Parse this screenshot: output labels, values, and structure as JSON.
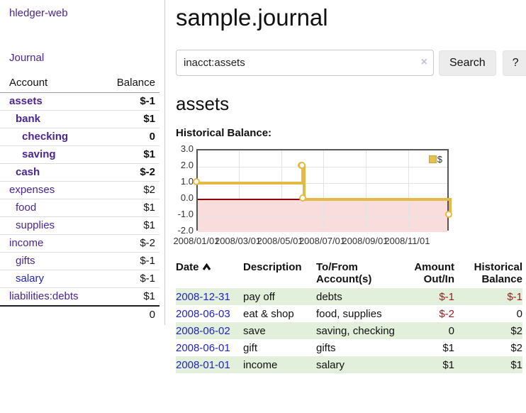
{
  "app": {
    "brand": "hledger-web",
    "nav_journal": "Journal"
  },
  "sidebar": {
    "accounts_header": {
      "account": "Account",
      "balance": "Balance"
    },
    "accounts": [
      {
        "name": "assets",
        "depth": 1,
        "balance": "$-1",
        "bold": true,
        "neg": "strong"
      },
      {
        "name": "bank",
        "depth": 2,
        "balance": "$1",
        "bold": true,
        "neg": "none"
      },
      {
        "name": "checking",
        "depth": 3,
        "balance": "0",
        "bold": true,
        "neg": "none"
      },
      {
        "name": "saving",
        "depth": 3,
        "balance": "$1",
        "bold": true,
        "neg": "none"
      },
      {
        "name": "cash",
        "depth": 2,
        "balance": "$-2",
        "bold": true,
        "neg": "strong"
      },
      {
        "name": "expenses",
        "depth": 1,
        "balance": "$2",
        "bold": false,
        "neg": "none"
      },
      {
        "name": "food",
        "depth": 2,
        "balance": "$1",
        "bold": false,
        "neg": "none"
      },
      {
        "name": "supplies",
        "depth": 2,
        "balance": "$1",
        "bold": false,
        "neg": "none"
      },
      {
        "name": "income",
        "depth": 1,
        "balance": "$-2",
        "bold": false,
        "neg": "muted"
      },
      {
        "name": "gifts",
        "depth": 2,
        "balance": "$-1",
        "bold": false,
        "neg": "muted"
      },
      {
        "name": "salary",
        "depth": 2,
        "balance": "$-1",
        "bold": false,
        "neg": "muted",
        "link_color": "blue"
      },
      {
        "name": "liabilities:debts",
        "depth": 1,
        "balance": "$1",
        "bold": false,
        "neg": "none"
      }
    ],
    "total": "0"
  },
  "header": {
    "title": "sample.journal"
  },
  "search": {
    "value": "inacct:assets",
    "clear_icon": "×",
    "button_label": "Search",
    "help_label": "?"
  },
  "account_page": {
    "heading": "assets",
    "chart_label": "Historical Balance:"
  },
  "chart_data": {
    "type": "line",
    "style": "step",
    "title": "Historical Balance",
    "series": [
      {
        "name": "$",
        "color": "#e4ba45",
        "points": [
          {
            "date": "2008-01-01",
            "value": 1
          },
          {
            "date": "2008-06-01",
            "value": 2
          },
          {
            "date": "2008-06-02",
            "value": 2
          },
          {
            "date": "2008-06-03",
            "value": 0
          },
          {
            "date": "2008-12-31",
            "value": -1
          }
        ]
      }
    ],
    "x_range": {
      "start": "2008-01-01",
      "end": "2008-12-31"
    },
    "ylim": [
      -2,
      3
    ],
    "yticks": [
      {
        "label": "3.0",
        "value": 3
      },
      {
        "label": "2.0",
        "value": 2
      },
      {
        "label": "1.0",
        "value": 1
      },
      {
        "label": "0.0",
        "value": 0
      },
      {
        "label": "-1.0",
        "value": -1
      },
      {
        "label": "-2.0",
        "value": -2
      }
    ],
    "xticks": [
      {
        "label": "2008/01/01",
        "date": "2008-01-01"
      },
      {
        "label": "2008/03/01",
        "date": "2008-03-01"
      },
      {
        "label": "2008/05/01",
        "date": "2008-05-01"
      },
      {
        "label": "2008/07/01",
        "date": "2008-07-01"
      },
      {
        "label": "2008/09/01",
        "date": "2008-09-01"
      },
      {
        "label": "2008/11/01",
        "date": "2008-11-01"
      }
    ],
    "legend": {
      "position": "top-right",
      "entries": [
        "$"
      ]
    },
    "negative_region_color": "#f9dddd",
    "zero_line_color": "#8b0000",
    "grid": true
  },
  "register": {
    "columns": [
      {
        "label": "Date",
        "sorted": "asc"
      },
      {
        "label": "Description"
      },
      {
        "label": "To/From Account(s)"
      },
      {
        "label": "Amount Out/In"
      },
      {
        "label": "Historical Balance"
      }
    ],
    "rows": [
      {
        "date": "2008-12-31",
        "description": "pay off",
        "accounts": "debts",
        "amount": "$-1",
        "balance": "$-1"
      },
      {
        "date": "2008-06-03",
        "description": "eat & shop",
        "accounts": "food, supplies",
        "amount": "$-2",
        "balance": "0"
      },
      {
        "date": "2008-06-02",
        "description": "save",
        "accounts": "saving, checking",
        "amount": "0",
        "balance": "$2"
      },
      {
        "date": "2008-06-01",
        "description": "gift",
        "accounts": "gifts",
        "amount": "$1",
        "balance": "$2"
      },
      {
        "date": "2008-01-01",
        "description": "income",
        "accounts": "salary",
        "amount": "$1",
        "balance": "$1"
      }
    ]
  }
}
